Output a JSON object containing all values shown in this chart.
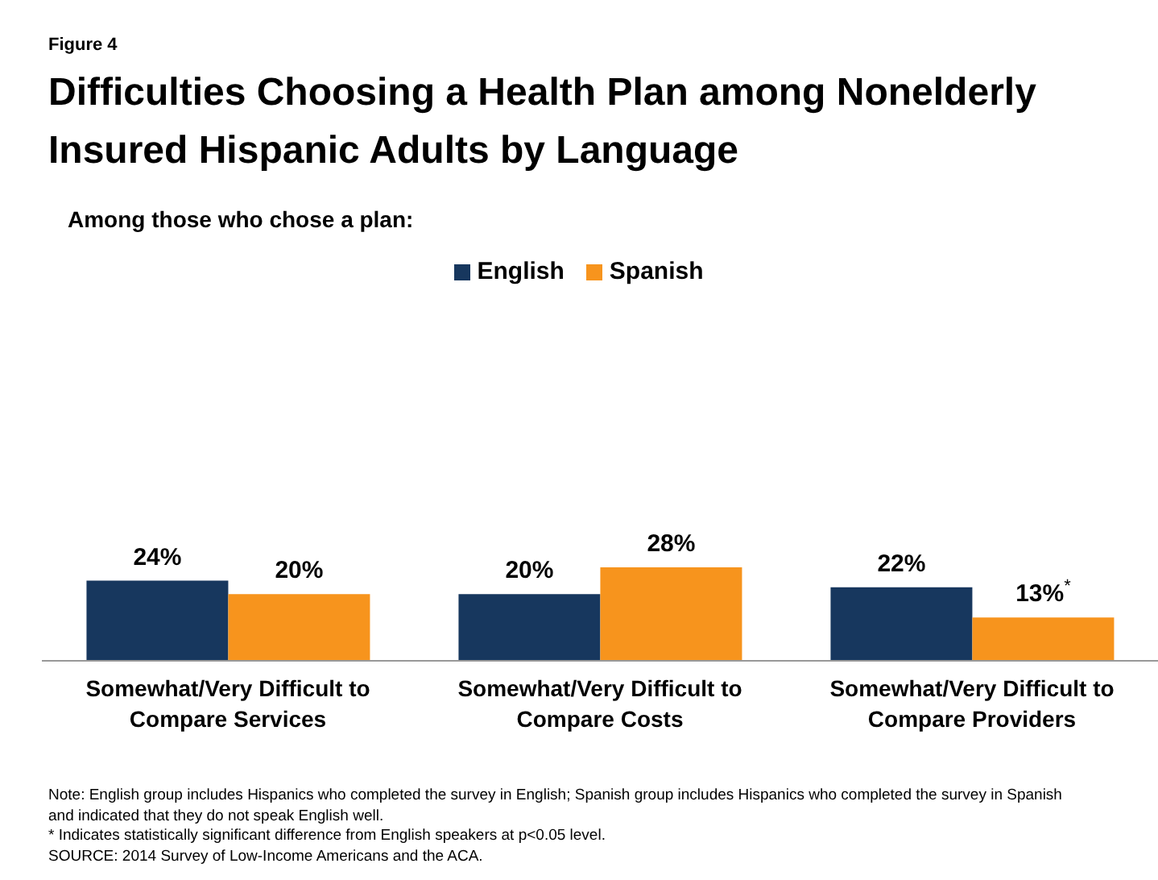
{
  "chart_data": {
    "type": "bar",
    "title": "Difficulties Choosing a Health Plan among Nonelderly Insured Hispanic Adults by Language",
    "subtitle": "Among those who chose a plan:",
    "categories": [
      "Somewhat/Very Difficult to Compare Services",
      "Somewhat/Very Difficult to Compare Costs",
      "Somewhat/Very Difficult to Compare Providers"
    ],
    "series": [
      {
        "name": "English",
        "color": "#17375e",
        "values": [
          24,
          20,
          22
        ],
        "value_labels": [
          "24%",
          "20%",
          "22%"
        ]
      },
      {
        "name": "Spanish",
        "color": "#f7941d",
        "values": [
          20,
          28,
          13
        ],
        "value_labels": [
          "20%",
          "28%",
          "13%$^{*}$"
        ]
      }
    ],
    "legend": "top",
    "grid": false,
    "annotations": [
      "Figure 4",
      "Note: English group includes Hispanics who completed the survey in English; Spanish group includes Hispanics who completed the survey in Spanish and indicated that they do not speak English well.",
      "* Indicates statistically significant difference from English speakers at p<0.05 level.",
      "SOURCE: 2014 Survey of Low-Income Americans and the ACA."
    ]
  }
}
